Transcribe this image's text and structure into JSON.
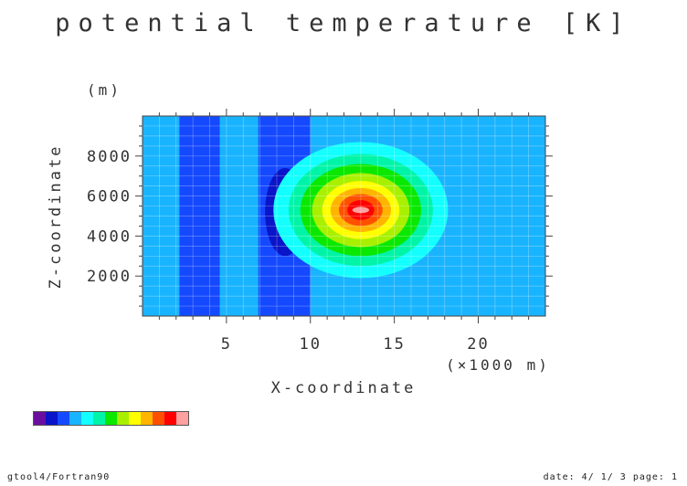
{
  "title": "potential temperature [K]",
  "footer": {
    "left": "gtool4/Fortran90",
    "right": "date: 4/ 1/ 3 page: 1"
  },
  "chart_data": {
    "type": "heatmap",
    "title": "potential temperature [K]",
    "xlabel": "X-coordinate",
    "xunit": "(×1000 m)",
    "ylabel": "Z-coordinate",
    "yunit": "(m)",
    "xlim": [
      0,
      24
    ],
    "ylim": [
      0,
      10000
    ],
    "xticks": [
      5,
      10,
      15,
      20
    ],
    "yticks": [
      2000,
      4000,
      6000,
      8000
    ],
    "grid": true,
    "background_level": 3,
    "levels_colors": [
      "#6a0ea0",
      "#0a14c8",
      "#1449ff",
      "#19b4ff",
      "#14ffff",
      "#00f4a8",
      "#0ae800",
      "#a8f000",
      "#ffff00",
      "#ffb400",
      "#ff5000",
      "#ff0000",
      "#ffa0a0"
    ],
    "features": [
      {
        "name": "column-left",
        "x": [
          2.2,
          4.6
        ],
        "level": 2
      },
      {
        "name": "column-center",
        "x": [
          6.9,
          10.0
        ],
        "level": 2
      },
      {
        "name": "cold-anomaly",
        "cx": 8.5,
        "cz": 5200,
        "rings": [
          {
            "rx": 1.2,
            "rz": 2200,
            "level": 1
          },
          {
            "rx": 0.6,
            "rz": 1200,
            "level": 0
          }
        ]
      },
      {
        "name": "warm-anomaly",
        "cx": 13.0,
        "cz": 5300,
        "rings": [
          {
            "rx": 5.2,
            "rz": 3400,
            "level": 4
          },
          {
            "rx": 4.3,
            "rz": 2800,
            "level": 5
          },
          {
            "rx": 3.6,
            "rz": 2300,
            "level": 6
          },
          {
            "rx": 2.9,
            "rz": 1850,
            "level": 7
          },
          {
            "rx": 2.3,
            "rz": 1450,
            "level": 8
          },
          {
            "rx": 1.8,
            "rz": 1100,
            "level": 9
          },
          {
            "rx": 1.3,
            "rz": 800,
            "level": 10
          },
          {
            "rx": 0.8,
            "rz": 500,
            "level": 11
          },
          {
            "rx": 0.5,
            "rz": 160,
            "level": 12
          }
        ]
      }
    ]
  }
}
